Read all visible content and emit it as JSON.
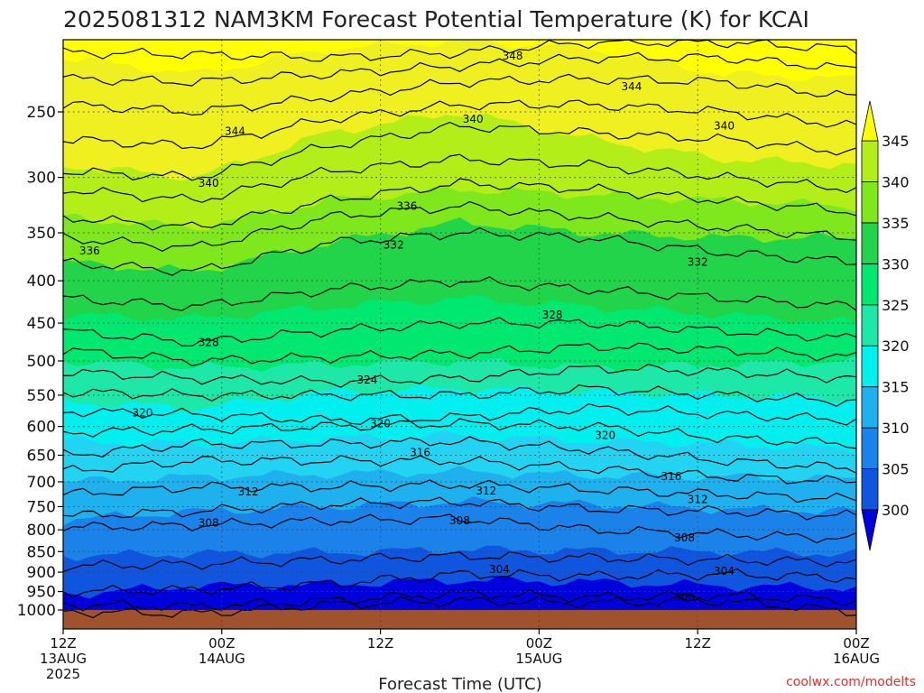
{
  "title": "2025081312 NAM3KM Forecast Potential Temperature (K) for KCAI",
  "credit": "coolwx.com/modelts",
  "colors": {
    "ground": "#a0522d",
    "fills": [
      "#0000dd",
      "#0f55dd",
      "#1a82e8",
      "#1fb0ee",
      "#22d4f2",
      "#00f0f0",
      "#1ee8a8",
      "#00e870",
      "#22d44a",
      "#7ee81c",
      "#b4ee18",
      "#f0f020",
      "#ffff00"
    ]
  },
  "chart_data": {
    "type": "heatmap",
    "title": "2025081312 NAM3KM Forecast Potential Temperature (K) for KCAI",
    "xlabel": "Forecast Time (UTC)",
    "ylabel": "",
    "x_ticks": [
      {
        "hours": 0,
        "line1": "12Z",
        "line2": "13AUG",
        "line3": "2025"
      },
      {
        "hours": 12,
        "line1": "00Z",
        "line2": "14AUG",
        "line3": ""
      },
      {
        "hours": 24,
        "line1": "12Z",
        "line2": "",
        "line3": ""
      },
      {
        "hours": 36,
        "line1": "00Z",
        "line2": "15AUG",
        "line3": ""
      },
      {
        "hours": 48,
        "line1": "12Z",
        "line2": "",
        "line3": ""
      },
      {
        "hours": 60,
        "line1": "00Z",
        "line2": "16AUG",
        "line3": ""
      }
    ],
    "xlim_hours": [
      0,
      60
    ],
    "y_axis": "pressure (hPa), log scale, inverted",
    "y_ticks": [
      250,
      300,
      350,
      400,
      450,
      500,
      550,
      600,
      650,
      700,
      750,
      800,
      850,
      900,
      950,
      1000
    ],
    "y_tick_labels": [
      "250",
      "300",
      "350",
      "400",
      "450",
      "500",
      "550",
      "600",
      "650",
      "700",
      "750",
      "800",
      "850",
      "900",
      "950",
      "1000"
    ],
    "ylim": [
      1040,
      200
    ],
    "grid": "dotted",
    "colorbar": {
      "levels": [
        300,
        305,
        310,
        315,
        320,
        325,
        330,
        335,
        340,
        345
      ],
      "labels": [
        "300",
        "305",
        "310",
        "315",
        "320",
        "325",
        "330",
        "335",
        "340",
        "345"
      ],
      "extend": "both"
    },
    "fill_boundaries": [
      {
        "theta": 302,
        "p": [
          990,
          995,
          992,
          990,
          996,
          1000,
          998
        ]
      },
      {
        "theta": 305,
        "p": [
          958,
          935,
          932,
          920,
          925,
          935,
          940
        ]
      },
      {
        "theta": 307,
        "p": [
          860,
          855,
          852,
          845,
          848,
          850,
          855
        ]
      },
      {
        "theta": 310,
        "p": [
          778,
          760,
          750,
          740,
          745,
          755,
          760
        ]
      },
      {
        "theta": 313,
        "p": [
          700,
          690,
          685,
          680,
          688,
          690,
          695
        ]
      },
      {
        "theta": 316,
        "p": [
          625,
          630,
          620,
          615,
          625,
          630,
          640
        ]
      },
      {
        "theta": 320,
        "p": [
          560,
          570,
          545,
          540,
          545,
          550,
          555
        ]
      },
      {
        "theta": 325,
        "p": [
          500,
          510,
          505,
          500,
          510,
          505,
          500
        ]
      },
      {
        "theta": 328,
        "p": [
          440,
          445,
          430,
          420,
          430,
          440,
          450
        ]
      },
      {
        "theta": 332,
        "p": [
          380,
          390,
          360,
          340,
          350,
          355,
          355
        ]
      },
      {
        "theta": 335,
        "p": [
          335,
          345,
          320,
          310,
          315,
          320,
          325
        ]
      },
      {
        "theta": 340,
        "p": [
          290,
          300,
          265,
          250,
          270,
          285,
          290
        ]
      },
      {
        "theta": 345,
        "p": [
          215,
          225,
          210,
          205,
          210,
          225,
          228
        ]
      }
    ],
    "contours": [
      {
        "theta": 300,
        "p": [
          1005,
          1010,
          985,
          975,
          980,
          975,
          1005
        ]
      },
      {
        "theta": 302,
        "p": [
          985,
          990,
          975,
          955,
          965,
          960,
          975
        ]
      },
      {
        "theta": 304,
        "p": [
          950,
          945,
          930,
          905,
          910,
          905,
          915
        ]
      },
      {
        "theta": 306,
        "p": [
          885,
          880,
          870,
          860,
          865,
          870,
          875
        ]
      },
      {
        "theta": 308,
        "p": [
          795,
          790,
          780,
          775,
          800,
          810,
          820
        ]
      },
      {
        "theta": 310,
        "p": [
          770,
          760,
          745,
          740,
          755,
          760,
          770
        ]
      },
      {
        "theta": 312,
        "p": [
          725,
          710,
          710,
          705,
          715,
          725,
          735
        ]
      },
      {
        "theta": 314,
        "p": [
          680,
          660,
          660,
          660,
          675,
          690,
          700
        ]
      },
      {
        "theta": 316,
        "p": [
          650,
          630,
          630,
          625,
          640,
          660,
          675
        ]
      },
      {
        "theta": 318,
        "p": [
          610,
          605,
          600,
          595,
          600,
          620,
          630
        ]
      },
      {
        "theta": 320,
        "p": [
          575,
          580,
          590,
          585,
          570,
          580,
          590
        ]
      },
      {
        "theta": 322,
        "p": [
          545,
          550,
          550,
          550,
          540,
          550,
          560
        ]
      },
      {
        "theta": 324,
        "p": [
          515,
          525,
          530,
          525,
          510,
          515,
          525
        ]
      },
      {
        "theta": 326,
        "p": [
          485,
          500,
          495,
          490,
          480,
          485,
          495
        ]
      },
      {
        "theta": 328,
        "p": [
          460,
          475,
          460,
          450,
          450,
          460,
          470
        ]
      },
      {
        "theta": 330,
        "p": [
          420,
          430,
          410,
          400,
          410,
          420,
          430
        ]
      },
      {
        "theta": 332,
        "p": [
          380,
          390,
          360,
          350,
          355,
          370,
          380
        ]
      },
      {
        "theta": 334,
        "p": [
          355,
          365,
          335,
          325,
          335,
          345,
          355
        ]
      },
      {
        "theta": 336,
        "p": [
          335,
          345,
          320,
          305,
          310,
          320,
          330
        ]
      },
      {
        "theta": 338,
        "p": [
          310,
          320,
          295,
          285,
          290,
          300,
          310
        ]
      },
      {
        "theta": 340,
        "p": [
          295,
          300,
          275,
          260,
          265,
          270,
          280
        ]
      },
      {
        "theta": 342,
        "p": [
          270,
          275,
          255,
          245,
          245,
          250,
          260
        ]
      },
      {
        "theta": 344,
        "p": [
          245,
          250,
          240,
          230,
          228,
          230,
          240
        ]
      },
      {
        "theta": 346,
        "p": [
          228,
          230,
          225,
          220,
          215,
          215,
          222
        ]
      },
      {
        "theta": 348,
        "p": [
          212,
          213,
          215,
          212,
          206,
          206,
          210
        ]
      }
    ],
    "contour_labels": [
      {
        "text": "348",
        "hours": 34,
        "p": 214
      },
      {
        "theta_note": "",
        "text": "344",
        "hours": 43,
        "p": 233
      },
      {
        "text": "344",
        "hours": 13,
        "p": 264
      },
      {
        "text": "340",
        "hours": 31,
        "p": 255
      },
      {
        "text": "340",
        "hours": 50,
        "p": 260
      },
      {
        "text": "340",
        "hours": 11,
        "p": 305
      },
      {
        "text": "336",
        "hours": 26,
        "p": 325
      },
      {
        "text": "336",
        "hours": 2,
        "p": 368
      },
      {
        "text": "332",
        "hours": 25,
        "p": 362
      },
      {
        "text": "332",
        "hours": 48,
        "p": 380
      },
      {
        "text": "328",
        "hours": 37,
        "p": 440
      },
      {
        "text": "328",
        "hours": 11,
        "p": 475
      },
      {
        "text": "324",
        "hours": 23,
        "p": 527
      },
      {
        "text": "320",
        "hours": 6,
        "p": 578
      },
      {
        "text": "320",
        "hours": 24,
        "p": 595
      },
      {
        "text": "320",
        "hours": 41,
        "p": 615
      },
      {
        "text": "316",
        "hours": 27,
        "p": 645
      },
      {
        "text": "316",
        "hours": 46,
        "p": 690
      },
      {
        "text": "312",
        "hours": 14,
        "p": 720
      },
      {
        "text": "312",
        "hours": 32,
        "p": 718
      },
      {
        "text": "312",
        "hours": 48,
        "p": 735
      },
      {
        "text": "308",
        "hours": 11,
        "p": 785
      },
      {
        "text": "308",
        "hours": 30,
        "p": 780
      },
      {
        "text": "308",
        "hours": 47,
        "p": 818
      },
      {
        "text": "304",
        "hours": 33,
        "p": 893
      },
      {
        "text": "304",
        "hours": 50,
        "p": 898
      },
      {
        "text": "300",
        "hours": 47,
        "p": 965
      }
    ]
  }
}
